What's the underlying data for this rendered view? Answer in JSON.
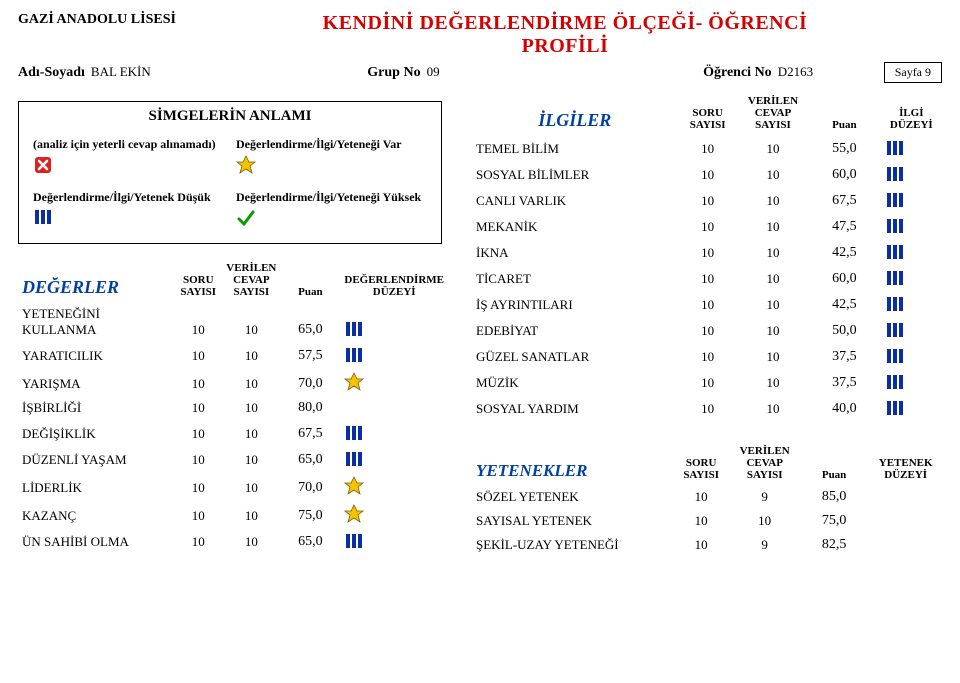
{
  "school": "GAZİ ANADOLU LİSESİ",
  "title": "KENDİNİ DEĞERLENDİRME ÖLÇEĞİ- ÖĞRENCİ PROFİLİ",
  "labels": {
    "adi": "Adı-Soyadı",
    "grup": "Grup No",
    "ogr": "Öğrenci No",
    "sayfa_pre": "Sayfa",
    "sayfa_no": "9"
  },
  "student": {
    "name": "BAL EKİN",
    "group": "09",
    "no": "D2163"
  },
  "simgeler": {
    "title": "SİMGELERİN ANLAMI",
    "notenough": "(analiz için yeterli cevap alınamadı)",
    "var": "Değerlendirme/İlgi/Yeteneği Var",
    "dusuk": "Değerlendirme/İlgi/Yetenek Düşük",
    "yuksek": "Değerlendirme/İlgi/Yeteneği Yüksek"
  },
  "degerler": {
    "header": "DEĞERLER",
    "cols": {
      "soru": "SORU SAYISI",
      "cevap": "VERİLEN CEVAP SAYISI",
      "puan": "Puan",
      "duzey": "DEĞERLENDİRME DÜZEYİ"
    },
    "rows": [
      {
        "l": "YETENEĞİNİ KULLANMA",
        "s": "10",
        "c": "10",
        "p": "65,0",
        "i": "blue"
      },
      {
        "l": "YARATICILIK",
        "s": "10",
        "c": "10",
        "p": "57,5",
        "i": "blue"
      },
      {
        "l": "YARIŞMA",
        "s": "10",
        "c": "10",
        "p": "70,0",
        "i": "yellow"
      },
      {
        "l": "İŞBİRLİĞİ",
        "s": "10",
        "c": "10",
        "p": "80,0",
        "i": ""
      },
      {
        "l": "DEĞİŞİKLİK",
        "s": "10",
        "c": "10",
        "p": "67,5",
        "i": "blue"
      },
      {
        "l": "DÜZENLİ YAŞAM",
        "s": "10",
        "c": "10",
        "p": "65,0",
        "i": "blue"
      },
      {
        "l": "LİDERLİK",
        "s": "10",
        "c": "10",
        "p": "70,0",
        "i": "yellow"
      },
      {
        "l": "KAZANÇ",
        "s": "10",
        "c": "10",
        "p": "75,0",
        "i": "yellow"
      },
      {
        "l": "ÜN SAHİBİ OLMA",
        "s": "10",
        "c": "10",
        "p": "65,0",
        "i": "blue"
      }
    ]
  },
  "ilgiler": {
    "header": "İLGİLER",
    "cols": {
      "soru": "SORU SAYISI",
      "cevap": "VERİLEN CEVAP SAYISI",
      "puan": "Puan",
      "duzey": "İLGİ DÜZEYİ"
    },
    "rows": [
      {
        "l": "TEMEL BİLİM",
        "s": "10",
        "c": "10",
        "p": "55,0",
        "i": "blue"
      },
      {
        "l": "SOSYAL BİLİMLER",
        "s": "10",
        "c": "10",
        "p": "60,0",
        "i": "blue"
      },
      {
        "l": "CANLI VARLIK",
        "s": "10",
        "c": "10",
        "p": "67,5",
        "i": "blue"
      },
      {
        "l": "MEKANİK",
        "s": "10",
        "c": "10",
        "p": "47,5",
        "i": "blue"
      },
      {
        "l": "İKNA",
        "s": "10",
        "c": "10",
        "p": "42,5",
        "i": "blue"
      },
      {
        "l": "TİCARET",
        "s": "10",
        "c": "10",
        "p": "60,0",
        "i": "blue"
      },
      {
        "l": "İŞ AYRINTILARI",
        "s": "10",
        "c": "10",
        "p": "42,5",
        "i": "blue"
      },
      {
        "l": "EDEBİYAT",
        "s": "10",
        "c": "10",
        "p": "50,0",
        "i": "blue"
      },
      {
        "l": "GÜZEL SANATLAR",
        "s": "10",
        "c": "10",
        "p": "37,5",
        "i": "blue"
      },
      {
        "l": "MÜZİK",
        "s": "10",
        "c": "10",
        "p": "37,5",
        "i": "blue"
      },
      {
        "l": "SOSYAL YARDIM",
        "s": "10",
        "c": "10",
        "p": "40,0",
        "i": "blue"
      }
    ]
  },
  "yetenek": {
    "header": "YETENEKLER",
    "cols": {
      "soru": "SORU SAYISI",
      "cevap": "VERİLEN CEVAP SAYISI",
      "puan": "Puan",
      "duzey": "YETENEK DÜZEYİ"
    },
    "rows": [
      {
        "l": "SÖZEL YETENEK",
        "s": "10",
        "c": "9",
        "p": "85,0",
        "i": ""
      },
      {
        "l": "SAYISAL YETENEK",
        "s": "10",
        "c": "10",
        "p": "75,0",
        "i": ""
      },
      {
        "l": "ŞEKİL-UZAY YETENEĞİ",
        "s": "10",
        "c": "9",
        "p": "82,5",
        "i": ""
      }
    ]
  },
  "icons": {
    "blue": "blue",
    "yellow": "yellow",
    "red": "red",
    "green": "green"
  }
}
